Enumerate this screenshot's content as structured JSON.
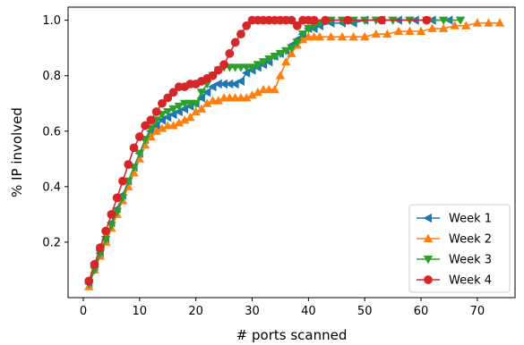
{
  "chart_data": {
    "type": "line",
    "xlabel": "# ports scanned",
    "ylabel": "% IP involved",
    "xlim": [
      -2.7,
      76.7
    ],
    "ylim": [
      0.0,
      1.047
    ],
    "xticks": [
      0,
      10,
      20,
      30,
      40,
      50,
      60,
      70
    ],
    "yticks": [
      0.2,
      0.4,
      0.6,
      0.8,
      1.0
    ],
    "xtick_labels": [
      "0",
      "10",
      "20",
      "30",
      "40",
      "50",
      "60",
      "70"
    ],
    "ytick_labels": [
      "0.2",
      "0.4",
      "0.6",
      "0.8",
      "1.0"
    ],
    "grid": false,
    "legend_position": "lower-right",
    "series": [
      {
        "name": "Week 1",
        "color": "#1f77b4",
        "marker": "triangle-left",
        "points": [
          [
            1,
            0.05
          ],
          [
            2,
            0.11
          ],
          [
            3,
            0.16
          ],
          [
            4,
            0.21
          ],
          [
            5,
            0.27
          ],
          [
            6,
            0.32
          ],
          [
            7,
            0.37
          ],
          [
            8,
            0.42
          ],
          [
            9,
            0.47
          ],
          [
            10,
            0.52
          ],
          [
            11,
            0.57
          ],
          [
            12,
            0.6
          ],
          [
            13,
            0.62
          ],
          [
            14,
            0.64
          ],
          [
            15,
            0.65
          ],
          [
            16,
            0.66
          ],
          [
            17,
            0.67
          ],
          [
            18,
            0.68
          ],
          [
            19,
            0.69
          ],
          [
            20,
            0.7
          ],
          [
            21,
            0.72
          ],
          [
            22,
            0.74
          ],
          [
            23,
            0.76
          ],
          [
            24,
            0.77
          ],
          [
            25,
            0.77
          ],
          [
            26,
            0.77
          ],
          [
            27,
            0.77
          ],
          [
            28,
            0.78
          ],
          [
            29,
            0.81
          ],
          [
            30,
            0.82
          ],
          [
            31,
            0.83
          ],
          [
            32,
            0.84
          ],
          [
            33,
            0.85
          ],
          [
            34,
            0.87
          ],
          [
            35,
            0.88
          ],
          [
            36,
            0.89
          ],
          [
            37,
            0.91
          ],
          [
            38,
            0.93
          ],
          [
            39,
            0.95
          ],
          [
            40,
            0.97
          ],
          [
            41,
            0.97
          ],
          [
            42,
            0.98
          ],
          [
            44,
            0.99
          ],
          [
            46,
            0.99
          ],
          [
            48,
            0.99
          ],
          [
            50,
            1.0
          ],
          [
            53,
            1.0
          ],
          [
            56,
            1.0
          ],
          [
            59,
            1.0
          ],
          [
            62,
            1.0
          ],
          [
            65,
            1.0
          ]
        ]
      },
      {
        "name": "Week 2",
        "color": "#ff7f0e",
        "marker": "triangle-up",
        "points": [
          [
            1,
            0.04
          ],
          [
            2,
            0.1
          ],
          [
            3,
            0.15
          ],
          [
            4,
            0.2
          ],
          [
            5,
            0.25
          ],
          [
            6,
            0.3
          ],
          [
            7,
            0.35
          ],
          [
            8,
            0.4
          ],
          [
            9,
            0.45
          ],
          [
            10,
            0.5
          ],
          [
            11,
            0.55
          ],
          [
            12,
            0.58
          ],
          [
            13,
            0.6
          ],
          [
            14,
            0.61
          ],
          [
            15,
            0.62
          ],
          [
            16,
            0.62
          ],
          [
            17,
            0.63
          ],
          [
            18,
            0.64
          ],
          [
            19,
            0.65
          ],
          [
            20,
            0.67
          ],
          [
            21,
            0.68
          ],
          [
            22,
            0.7
          ],
          [
            23,
            0.71
          ],
          [
            24,
            0.71
          ],
          [
            25,
            0.72
          ],
          [
            26,
            0.72
          ],
          [
            27,
            0.72
          ],
          [
            28,
            0.72
          ],
          [
            29,
            0.72
          ],
          [
            30,
            0.73
          ],
          [
            31,
            0.74
          ],
          [
            32,
            0.75
          ],
          [
            33,
            0.75
          ],
          [
            34,
            0.75
          ],
          [
            35,
            0.8
          ],
          [
            36,
            0.85
          ],
          [
            37,
            0.88
          ],
          [
            38,
            0.91
          ],
          [
            39,
            0.93
          ],
          [
            40,
            0.94
          ],
          [
            41,
            0.94
          ],
          [
            42,
            0.94
          ],
          [
            44,
            0.94
          ],
          [
            46,
            0.94
          ],
          [
            48,
            0.94
          ],
          [
            50,
            0.94
          ],
          [
            52,
            0.95
          ],
          [
            54,
            0.95
          ],
          [
            56,
            0.96
          ],
          [
            58,
            0.96
          ],
          [
            60,
            0.96
          ],
          [
            62,
            0.97
          ],
          [
            64,
            0.97
          ],
          [
            66,
            0.98
          ],
          [
            68,
            0.98
          ],
          [
            70,
            0.99
          ],
          [
            72,
            0.99
          ],
          [
            74,
            0.99
          ]
        ]
      },
      {
        "name": "Week 3",
        "color": "#2ca02c",
        "marker": "triangle-down",
        "points": [
          [
            1,
            0.05
          ],
          [
            2,
            0.1
          ],
          [
            3,
            0.16
          ],
          [
            4,
            0.21
          ],
          [
            5,
            0.26
          ],
          [
            6,
            0.31
          ],
          [
            7,
            0.36
          ],
          [
            8,
            0.42
          ],
          [
            9,
            0.47
          ],
          [
            10,
            0.52
          ],
          [
            11,
            0.57
          ],
          [
            12,
            0.61
          ],
          [
            13,
            0.64
          ],
          [
            14,
            0.66
          ],
          [
            15,
            0.67
          ],
          [
            16,
            0.68
          ],
          [
            17,
            0.69
          ],
          [
            18,
            0.7
          ],
          [
            19,
            0.7
          ],
          [
            20,
            0.7
          ],
          [
            21,
            0.74
          ],
          [
            22,
            0.77
          ],
          [
            23,
            0.8
          ],
          [
            24,
            0.82
          ],
          [
            25,
            0.83
          ],
          [
            26,
            0.83
          ],
          [
            27,
            0.83
          ],
          [
            28,
            0.83
          ],
          [
            29,
            0.83
          ],
          [
            30,
            0.83
          ],
          [
            31,
            0.84
          ],
          [
            32,
            0.85
          ],
          [
            33,
            0.86
          ],
          [
            34,
            0.87
          ],
          [
            35,
            0.88
          ],
          [
            36,
            0.89
          ],
          [
            37,
            0.9
          ],
          [
            38,
            0.92
          ],
          [
            39,
            0.95
          ],
          [
            40,
            0.97
          ],
          [
            41,
            0.98
          ],
          [
            42,
            0.99
          ],
          [
            44,
            1.0
          ],
          [
            46,
            1.0
          ],
          [
            48,
            1.0
          ],
          [
            50,
            1.0
          ],
          [
            52,
            1.0
          ],
          [
            55,
            1.0
          ],
          [
            58,
            1.0
          ],
          [
            61,
            1.0
          ],
          [
            64,
            1.0
          ],
          [
            67,
            1.0
          ]
        ]
      },
      {
        "name": "Week 4",
        "color": "#d62728",
        "marker": "circle",
        "points": [
          [
            1,
            0.06
          ],
          [
            2,
            0.12
          ],
          [
            3,
            0.18
          ],
          [
            4,
            0.24
          ],
          [
            5,
            0.3
          ],
          [
            6,
            0.36
          ],
          [
            7,
            0.42
          ],
          [
            8,
            0.48
          ],
          [
            9,
            0.54
          ],
          [
            10,
            0.58
          ],
          [
            11,
            0.62
          ],
          [
            12,
            0.64
          ],
          [
            13,
            0.67
          ],
          [
            14,
            0.7
          ],
          [
            15,
            0.72
          ],
          [
            16,
            0.74
          ],
          [
            17,
            0.76
          ],
          [
            18,
            0.76
          ],
          [
            19,
            0.77
          ],
          [
            20,
            0.77
          ],
          [
            21,
            0.78
          ],
          [
            22,
            0.79
          ],
          [
            23,
            0.8
          ],
          [
            24,
            0.82
          ],
          [
            25,
            0.84
          ],
          [
            26,
            0.88
          ],
          [
            27,
            0.92
          ],
          [
            28,
            0.95
          ],
          [
            29,
            0.98
          ],
          [
            30,
            1.0
          ],
          [
            31,
            1.0
          ],
          [
            32,
            1.0
          ],
          [
            33,
            1.0
          ],
          [
            34,
            1.0
          ],
          [
            35,
            1.0
          ],
          [
            36,
            1.0
          ],
          [
            37,
            1.0
          ],
          [
            38,
            0.98
          ],
          [
            39,
            1.0
          ],
          [
            40,
            1.0
          ],
          [
            41,
            1.0
          ],
          [
            43,
            1.0
          ],
          [
            47,
            1.0
          ],
          [
            53,
            1.0
          ],
          [
            61,
            1.0
          ]
        ]
      }
    ]
  }
}
